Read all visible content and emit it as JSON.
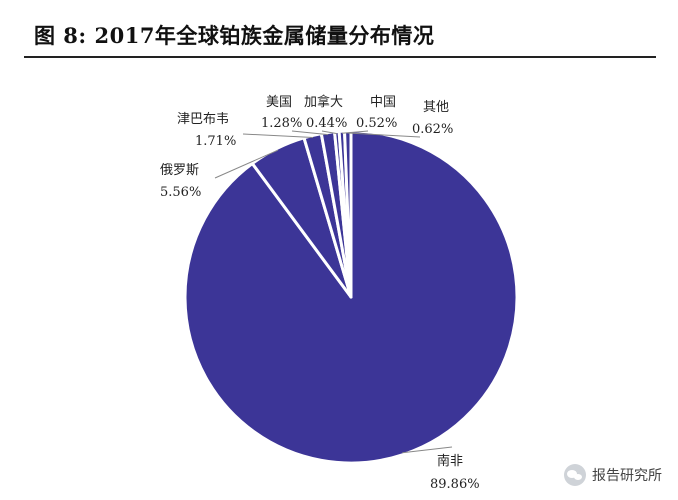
{
  "figure": {
    "title": "图 8: 2017年全球铂族金属储量分布情况"
  },
  "watermark": {
    "text": "报告研究所",
    "icon": "wechat-icon"
  },
  "colors": {
    "slice_fill": "#3c3597",
    "slice_stroke": "#ffffff",
    "leader_line": "#888888"
  },
  "chart_data": {
    "type": "pie",
    "title": "2017年全球铂族金属储量分布情况",
    "start_angle_deg": 0,
    "direction": "clockwise",
    "slices": [
      {
        "name": "南非",
        "value": 89.86,
        "value_label": "89.86%"
      },
      {
        "name": "俄罗斯",
        "value": 5.56,
        "value_label": "5.56%"
      },
      {
        "name": "津巴布韦",
        "value": 1.71,
        "value_label": "1.71%"
      },
      {
        "name": "美国",
        "value": 1.28,
        "value_label": "1.28%"
      },
      {
        "name": "加拿大",
        "value": 0.44,
        "value_label": "0.44%"
      },
      {
        "name": "中国",
        "value": 0.52,
        "value_label": "0.52%"
      },
      {
        "name": "其他",
        "value": 0.62,
        "value_label": "0.62%"
      }
    ]
  }
}
